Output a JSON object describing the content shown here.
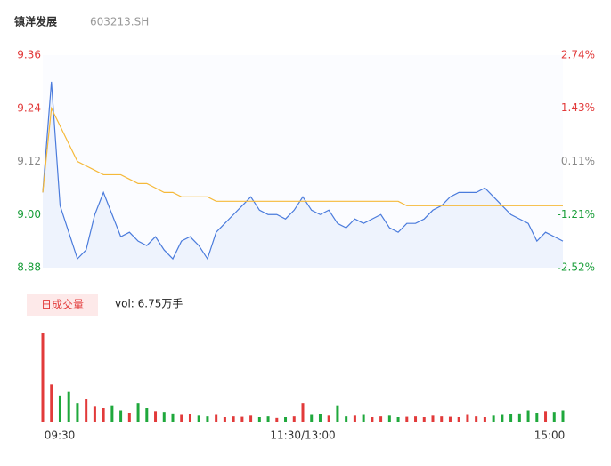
{
  "chart_data": {
    "type": "line",
    "title": "镇洋发展",
    "subtitle": "603213.SH",
    "volume_button": "日成交量",
    "volume_text": "vol: 6.75万手",
    "categories": [
      "09:30",
      null,
      null,
      null,
      null,
      null,
      null,
      null,
      null,
      null,
      null,
      null,
      null,
      null,
      null,
      null,
      null,
      null,
      null,
      null,
      null,
      null,
      null,
      null,
      null,
      null,
      null,
      null,
      null,
      null,
      "11:30/13:00",
      null,
      null,
      null,
      null,
      null,
      null,
      null,
      null,
      null,
      null,
      null,
      null,
      null,
      null,
      null,
      null,
      null,
      null,
      null,
      null,
      null,
      null,
      null,
      null,
      null,
      null,
      null,
      null,
      null,
      "15:00"
    ],
    "ylim": [
      8.88,
      9.36
    ],
    "yticks": [
      9.36,
      9.24,
      9.12,
      {
        "value": 9.0,
        "label": "9.00"
      },
      8.88
    ],
    "y2lim": [
      -2.52,
      2.74
    ],
    "y2ticks": [
      {
        "value": 2.74,
        "label": "2.74%"
      },
      {
        "value": 1.43,
        "label": "1.43%"
      },
      {
        "value": 0.11,
        "label": "0.11%"
      },
      {
        "value": -1.21,
        "label": "-1.21%"
      },
      {
        "value": -2.52,
        "label": "-2.52%"
      }
    ],
    "series": [
      {
        "name": "price",
        "color": "#4a7bdc",
        "values": [
          9.05,
          9.3,
          9.02,
          8.96,
          8.9,
          8.92,
          9.0,
          9.05,
          9.0,
          8.95,
          8.96,
          8.94,
          8.93,
          8.95,
          8.92,
          8.9,
          8.94,
          8.95,
          8.93,
          8.9,
          8.96,
          8.98,
          9.0,
          9.02,
          9.04,
          9.01,
          9.0,
          9.0,
          8.99,
          9.01,
          9.04,
          9.01,
          9.0,
          9.01,
          8.98,
          8.97,
          8.99,
          8.98,
          8.99,
          9.0,
          8.97,
          8.96,
          8.98,
          8.98,
          8.99,
          9.01,
          9.02,
          9.04,
          9.05,
          9.05,
          9.05,
          9.06,
          9.04,
          9.02,
          9.0,
          8.99,
          8.98,
          8.94,
          8.96,
          8.95,
          8.94
        ]
      },
      {
        "name": "average",
        "color": "#f5b93a",
        "values": [
          9.05,
          9.24,
          9.2,
          9.16,
          9.12,
          9.11,
          9.1,
          9.09,
          9.09,
          9.09,
          9.08,
          9.07,
          9.07,
          9.06,
          9.05,
          9.05,
          9.04,
          9.04,
          9.04,
          9.04,
          9.03,
          9.03,
          9.03,
          9.03,
          9.03,
          9.03,
          9.03,
          9.03,
          9.03,
          9.03,
          9.03,
          9.03,
          9.03,
          9.03,
          9.03,
          9.03,
          9.03,
          9.03,
          9.03,
          9.03,
          9.03,
          9.03,
          9.02,
          9.02,
          9.02,
          9.02,
          9.02,
          9.02,
          9.02,
          9.02,
          9.02,
          9.02,
          9.02,
          9.02,
          9.02,
          9.02,
          9.02,
          9.02,
          9.02,
          9.02,
          9.02
        ]
      }
    ],
    "volume": [
      12000,
      5000,
      3500,
      4000,
      2500,
      3000,
      2000,
      1800,
      2200,
      1500,
      1200,
      2500,
      1800,
      1400,
      1300,
      1100,
      900,
      1000,
      800,
      700,
      900,
      600,
      700,
      650,
      800,
      600,
      700,
      500,
      600,
      700,
      2500,
      900,
      1000,
      800,
      2200,
      700,
      800,
      900,
      600,
      700,
      800,
      600,
      650,
      700,
      600,
      800,
      700,
      650,
      600,
      900,
      700,
      600,
      800,
      900,
      1000,
      1100,
      1500,
      1200,
      1400,
      1300,
      1500
    ]
  }
}
